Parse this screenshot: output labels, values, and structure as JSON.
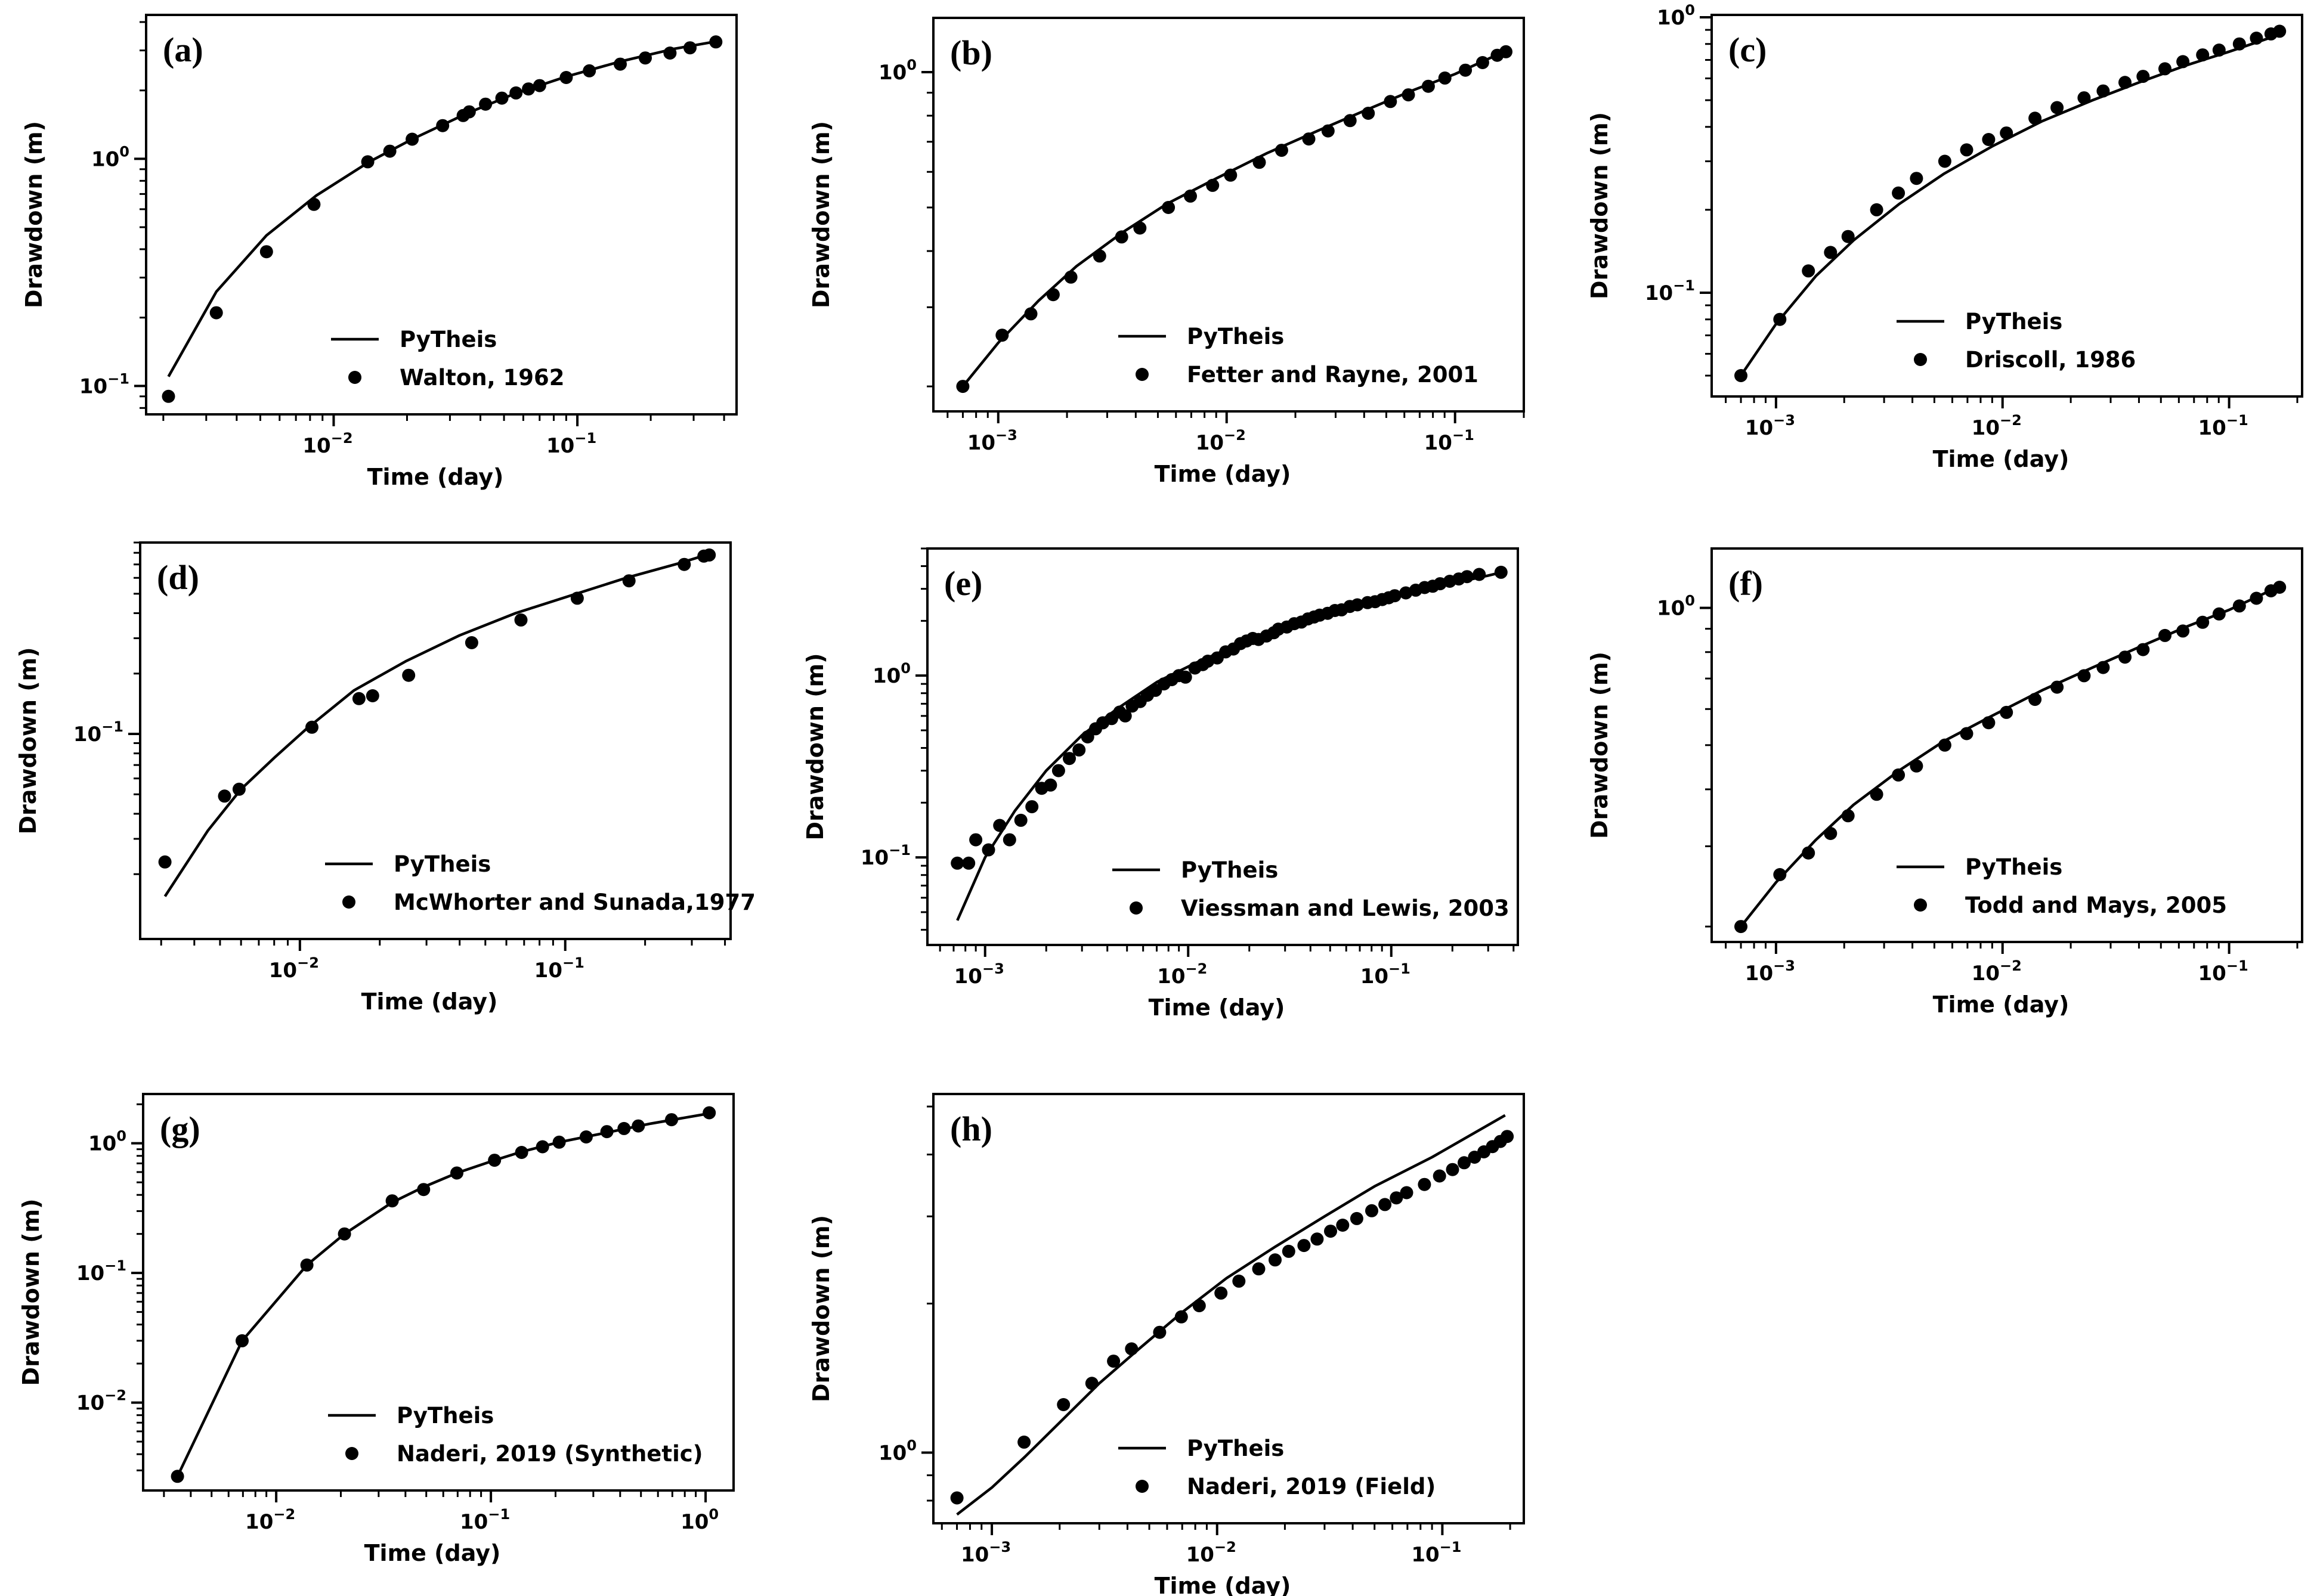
{
  "chart_data": [
    {
      "type": "line",
      "panel": "(a)",
      "xlabel": "Time (day)",
      "ylabel": "Drawdown (m)",
      "xscale": "log",
      "yscale": "log",
      "xlim": [
        0.0017,
        0.45
      ],
      "ylim": [
        0.075,
        4.3
      ],
      "xticks": [
        -2,
        -1
      ],
      "yticks": [
        -1,
        0
      ],
      "legend_position": "lower-right",
      "series": [
        {
          "name": "PyTheis",
          "kind": "line",
          "x": [
            0.0021,
            0.0033,
            0.0053,
            0.0085,
            0.014,
            0.021,
            0.035,
            0.055,
            0.09,
            0.15,
            0.25,
            0.38
          ],
          "y": [
            0.11,
            0.26,
            0.46,
            0.69,
            0.97,
            1.22,
            1.58,
            1.93,
            2.3,
            2.68,
            3.05,
            3.3
          ]
        },
        {
          "name": "Walton, 1962",
          "kind": "scatter",
          "x": [
            0.0021,
            0.0033,
            0.0053,
            0.0083,
            0.0138,
            0.017,
            0.021,
            0.028,
            0.034,
            0.036,
            0.042,
            0.049,
            0.056,
            0.063,
            0.07,
            0.09,
            0.112,
            0.15,
            0.19,
            0.24,
            0.29,
            0.37
          ],
          "y": [
            0.09,
            0.21,
            0.39,
            0.63,
            0.97,
            1.08,
            1.22,
            1.4,
            1.55,
            1.61,
            1.74,
            1.85,
            1.95,
            2.03,
            2.1,
            2.28,
            2.44,
            2.61,
            2.78,
            2.92,
            3.08,
            3.27
          ]
        }
      ],
      "legend": [
        "PyTheis",
        "Walton, 1962"
      ]
    },
    {
      "type": "line",
      "panel": "(b)",
      "xlabel": "Time (day)",
      "ylabel": "Drawdown (m)",
      "xscale": "log",
      "yscale": "log",
      "xlim": [
        0.00052,
        0.2
      ],
      "ylim": [
        0.176,
        1.32
      ],
      "xticks": [
        -3,
        -2,
        -1
      ],
      "yticks": [
        0
      ],
      "legend_position": "lower-right",
      "series": [
        {
          "name": "PyTheis",
          "kind": "line",
          "x": [
            0.0007,
            0.001,
            0.0015,
            0.0022,
            0.0035,
            0.0055,
            0.009,
            0.015,
            0.025,
            0.04,
            0.065,
            0.1,
            0.17
          ],
          "y": [
            0.2,
            0.25,
            0.31,
            0.37,
            0.44,
            0.51,
            0.58,
            0.66,
            0.74,
            0.82,
            0.91,
            0.99,
            1.12
          ]
        },
        {
          "name": "Fetter and Rayne, 2001",
          "kind": "scatter",
          "x": [
            0.0007,
            0.00104,
            0.00139,
            0.00174,
            0.00208,
            0.00278,
            0.00347,
            0.00417,
            0.00556,
            0.00694,
            0.00868,
            0.0104,
            0.0139,
            0.0174,
            0.0229,
            0.0278,
            0.0347,
            0.0417,
            0.0521,
            0.0625,
            0.0764,
            0.0903,
            0.111,
            0.132,
            0.153,
            0.167
          ],
          "y": [
            0.2,
            0.26,
            0.29,
            0.32,
            0.35,
            0.39,
            0.43,
            0.45,
            0.5,
            0.53,
            0.56,
            0.59,
            0.63,
            0.67,
            0.71,
            0.74,
            0.78,
            0.81,
            0.86,
            0.89,
            0.93,
            0.97,
            1.01,
            1.05,
            1.09,
            1.11
          ]
        }
      ],
      "legend": [
        "PyTheis",
        "Fetter and Rayne, 2001"
      ]
    },
    {
      "type": "line",
      "panel": "(c)",
      "xlabel": "Time (day)",
      "ylabel": "Drawdown (m)",
      "xscale": "log",
      "yscale": "log",
      "xlim": [
        0.00052,
        0.21
      ],
      "ylim": [
        0.042,
        1.02
      ],
      "xticks": [
        -3,
        -2,
        -1
      ],
      "yticks": [
        -1,
        0
      ],
      "legend_position": "lower-right",
      "series": [
        {
          "name": "PyTheis",
          "kind": "line",
          "x": [
            0.0007,
            0.001,
            0.0015,
            0.0022,
            0.0035,
            0.0055,
            0.009,
            0.015,
            0.025,
            0.04,
            0.065,
            0.1,
            0.17
          ],
          "y": [
            0.05,
            0.077,
            0.115,
            0.155,
            0.21,
            0.27,
            0.34,
            0.42,
            0.5,
            0.58,
            0.67,
            0.75,
            0.87
          ]
        },
        {
          "name": "Driscoll, 1986",
          "kind": "scatter",
          "x": [
            0.0007,
            0.00104,
            0.00139,
            0.00174,
            0.00208,
            0.00278,
            0.00347,
            0.00417,
            0.00556,
            0.00694,
            0.00868,
            0.0104,
            0.0139,
            0.0174,
            0.0229,
            0.0278,
            0.0347,
            0.0417,
            0.0521,
            0.0625,
            0.0764,
            0.0903,
            0.111,
            0.132,
            0.153,
            0.167
          ],
          "y": [
            0.05,
            0.08,
            0.12,
            0.14,
            0.16,
            0.2,
            0.23,
            0.26,
            0.3,
            0.33,
            0.36,
            0.38,
            0.43,
            0.47,
            0.51,
            0.54,
            0.58,
            0.61,
            0.65,
            0.69,
            0.73,
            0.76,
            0.8,
            0.84,
            0.87,
            0.89
          ]
        }
      ],
      "legend": [
        "PyTheis",
        "Driscoll, 1986"
      ]
    },
    {
      "type": "line",
      "panel": "(d)",
      "xlabel": "Time (day)",
      "ylabel": "Drawdown (m)",
      "xscale": "log",
      "yscale": "log",
      "xlim": [
        0.0025,
        0.42
      ],
      "ylim": [
        0.0095,
        0.9
      ],
      "xticks": [
        -2,
        -1
      ],
      "yticks": [
        -1
      ],
      "legend_position": "lower-right",
      "series": [
        {
          "name": "PyTheis",
          "kind": "line",
          "x": [
            0.0031,
            0.0045,
            0.006,
            0.008,
            0.0105,
            0.016,
            0.025,
            0.04,
            0.065,
            0.1,
            0.17,
            0.27,
            0.35
          ],
          "y": [
            0.0155,
            0.033,
            0.053,
            0.076,
            0.105,
            0.165,
            0.23,
            0.31,
            0.4,
            0.48,
            0.6,
            0.71,
            0.79
          ]
        },
        {
          "name": "McWhorter and Sunada,1977",
          "kind": "scatter",
          "x": [
            0.0031,
            0.0052,
            0.0059,
            0.0111,
            0.0167,
            0.0188,
            0.0257,
            0.0444,
            0.0681,
            0.111,
            0.174,
            0.281,
            0.333,
            0.349
          ],
          "y": [
            0.023,
            0.049,
            0.053,
            0.108,
            0.15,
            0.155,
            0.196,
            0.285,
            0.37,
            0.475,
            0.58,
            0.7,
            0.77,
            0.78
          ]
        }
      ],
      "legend": [
        "PyTheis",
        "McWhorter and Sunada,1977"
      ]
    },
    {
      "type": "line",
      "panel": "(e)",
      "xlabel": "Time (day)",
      "ylabel": "Drawdown (m)",
      "xscale": "log",
      "yscale": "log",
      "xlim": [
        0.00052,
        0.42
      ],
      "ylim": [
        0.033,
        5.0
      ],
      "xticks": [
        -3,
        -2,
        -1
      ],
      "yticks": [
        -1,
        0
      ],
      "legend_position": "lower-right",
      "series": [
        {
          "name": "PyTheis",
          "kind": "line",
          "x": [
            0.00073,
            0.001,
            0.0014,
            0.002,
            0.003,
            0.0045,
            0.007,
            0.011,
            0.018,
            0.03,
            0.05,
            0.09,
            0.16,
            0.3,
            0.35
          ],
          "y": [
            0.045,
            0.1,
            0.18,
            0.3,
            0.47,
            0.66,
            0.92,
            1.18,
            1.5,
            1.85,
            2.2,
            2.65,
            3.05,
            3.55,
            3.7
          ]
        },
        {
          "name": "Viessman and Lewis, 2003",
          "kind": "scatter",
          "x": [
            0.00073,
            0.00083,
            0.0009,
            0.00104,
            0.00118,
            0.00132,
            0.0015,
            0.0017,
            0.0019,
            0.0021,
            0.0023,
            0.0026,
            0.0029,
            0.0032,
            0.0035,
            0.0038,
            0.0042,
            0.0046,
            0.0049,
            0.0053,
            0.0058,
            0.0063,
            0.0069,
            0.0076,
            0.0083,
            0.009,
            0.0097,
            0.0108,
            0.0118,
            0.0125,
            0.0139,
            0.0153,
            0.0167,
            0.0181,
            0.0194,
            0.0208,
            0.0222,
            0.0243,
            0.0264,
            0.0278,
            0.0306,
            0.0333,
            0.0361,
            0.0389,
            0.0417,
            0.0444,
            0.0486,
            0.0528,
            0.0569,
            0.0625,
            0.0681,
            0.0764,
            0.0833,
            0.0903,
            0.0972,
            0.104,
            0.118,
            0.132,
            0.146,
            0.16,
            0.174,
            0.194,
            0.215,
            0.236,
            0.271,
            0.347
          ],
          "y": [
            0.093,
            0.093,
            0.125,
            0.11,
            0.15,
            0.125,
            0.16,
            0.19,
            0.24,
            0.25,
            0.3,
            0.35,
            0.39,
            0.46,
            0.51,
            0.55,
            0.58,
            0.63,
            0.6,
            0.68,
            0.72,
            0.78,
            0.83,
            0.9,
            0.95,
            1.0,
            0.98,
            1.1,
            1.15,
            1.2,
            1.25,
            1.35,
            1.4,
            1.5,
            1.55,
            1.6,
            1.58,
            1.65,
            1.72,
            1.8,
            1.85,
            1.93,
            1.97,
            2.05,
            2.1,
            2.15,
            2.2,
            2.28,
            2.3,
            2.4,
            2.45,
            2.52,
            2.55,
            2.62,
            2.68,
            2.75,
            2.85,
            2.95,
            3.05,
            3.1,
            3.2,
            3.3,
            3.4,
            3.5,
            3.6,
            3.7
          ]
        }
      ],
      "legend": [
        "PyTheis",
        "Viessman and Lewis, 2003"
      ]
    },
    {
      "type": "line",
      "panel": "(f)",
      "xlabel": "Time (day)",
      "ylabel": "Drawdown (m)",
      "xscale": "log",
      "yscale": "log",
      "xlim": [
        0.00052,
        0.21
      ],
      "ylim": [
        0.185,
        1.35
      ],
      "xticks": [
        -3,
        -2,
        -1
      ],
      "yticks": [
        0
      ],
      "legend_position": "lower-right",
      "series": [
        {
          "name": "PyTheis",
          "kind": "line",
          "x": [
            0.0007,
            0.001,
            0.0015,
            0.0022,
            0.0035,
            0.0055,
            0.009,
            0.015,
            0.025,
            0.04,
            0.065,
            0.1,
            0.17
          ],
          "y": [
            0.2,
            0.25,
            0.31,
            0.37,
            0.44,
            0.51,
            0.58,
            0.66,
            0.74,
            0.82,
            0.91,
            0.99,
            1.12
          ]
        },
        {
          "name": "Todd and Mays, 2005",
          "kind": "scatter",
          "x": [
            0.0007,
            0.00104,
            0.00139,
            0.00174,
            0.00208,
            0.00278,
            0.00347,
            0.00417,
            0.00556,
            0.00694,
            0.00868,
            0.0104,
            0.0139,
            0.0174,
            0.0229,
            0.0278,
            0.0347,
            0.0417,
            0.0521,
            0.0625,
            0.0764,
            0.0903,
            0.111,
            0.132,
            0.153,
            0.167
          ],
          "y": [
            0.2,
            0.26,
            0.29,
            0.32,
            0.35,
            0.39,
            0.43,
            0.45,
            0.5,
            0.53,
            0.56,
            0.59,
            0.63,
            0.67,
            0.71,
            0.74,
            0.78,
            0.81,
            0.87,
            0.89,
            0.93,
            0.97,
            1.01,
            1.05,
            1.09,
            1.11
          ]
        }
      ],
      "legend": [
        "PyTheis",
        "Todd and Mays, 2005"
      ]
    },
    {
      "type": "line",
      "panel": "(g)",
      "xlabel": "Time (day)",
      "ylabel": "Drawdown (m)",
      "xscale": "log",
      "yscale": "log",
      "xlim": [
        0.0024,
        1.35
      ],
      "ylim": [
        0.0021,
        2.4
      ],
      "xticks": [
        -2,
        -1,
        0
      ],
      "yticks": [
        -2,
        -1,
        0
      ],
      "legend_position": "lower-right",
      "series": [
        {
          "name": "PyTheis",
          "kind": "line",
          "x": [
            0.00347,
            0.00694,
            0.0139,
            0.0208,
            0.0347,
            0.0486,
            0.0694,
            0.104,
            0.139,
            0.208,
            0.347,
            0.556,
            1.04
          ],
          "y": [
            0.0027,
            0.03,
            0.115,
            0.2,
            0.35,
            0.46,
            0.59,
            0.74,
            0.86,
            1.02,
            1.21,
            1.42,
            1.7
          ]
        },
        {
          "name": "Naderi, 2019 (Synthetic)",
          "kind": "scatter",
          "x": [
            0.00347,
            0.00694,
            0.0139,
            0.0208,
            0.0347,
            0.0486,
            0.0694,
            0.104,
            0.139,
            0.174,
            0.208,
            0.278,
            0.347,
            0.417,
            0.486,
            0.694,
            1.04
          ],
          "y": [
            0.0027,
            0.03,
            0.115,
            0.2,
            0.36,
            0.44,
            0.59,
            0.74,
            0.85,
            0.94,
            1.02,
            1.12,
            1.23,
            1.3,
            1.36,
            1.52,
            1.72
          ]
        }
      ],
      "legend": [
        "PyTheis",
        "Naderi, 2019 (Synthetic)"
      ]
    },
    {
      "type": "line",
      "panel": "(h)",
      "xlabel": "Time (day)",
      "ylabel": "Drawdown (m)",
      "xscale": "log",
      "yscale": "log",
      "xlim": [
        0.00055,
        0.23
      ],
      "ylim": [
        0.72,
        5.3
      ],
      "xticks": [
        -3,
        -2,
        -1
      ],
      "yticks": [
        0
      ],
      "legend_position": "lower-right",
      "series": [
        {
          "name": "PyTheis",
          "kind": "line",
          "x": [
            0.0007,
            0.001,
            0.0014,
            0.002,
            0.003,
            0.0045,
            0.007,
            0.011,
            0.018,
            0.03,
            0.05,
            0.09,
            0.19
          ],
          "y": [
            0.75,
            0.85,
            0.98,
            1.15,
            1.38,
            1.62,
            1.92,
            2.25,
            2.6,
            3.0,
            3.45,
            3.95,
            4.8
          ]
        },
        {
          "name": "Naderi, 2019 (Field)",
          "kind": "scatter",
          "x": [
            0.0007,
            0.00139,
            0.00208,
            0.00278,
            0.00347,
            0.00417,
            0.00556,
            0.00694,
            0.00833,
            0.0104,
            0.0125,
            0.0153,
            0.0181,
            0.0208,
            0.0243,
            0.0278,
            0.0319,
            0.0361,
            0.0417,
            0.0486,
            0.0556,
            0.0625,
            0.0694,
            0.0833,
            0.0972,
            0.111,
            0.125,
            0.139,
            0.153,
            0.167,
            0.181,
            0.194
          ],
          "y": [
            0.81,
            1.05,
            1.25,
            1.38,
            1.53,
            1.62,
            1.75,
            1.88,
            1.98,
            2.1,
            2.22,
            2.35,
            2.45,
            2.55,
            2.62,
            2.7,
            2.8,
            2.88,
            2.97,
            3.08,
            3.17,
            3.27,
            3.35,
            3.48,
            3.62,
            3.73,
            3.85,
            3.95,
            4.05,
            4.15,
            4.25,
            4.35
          ]
        }
      ],
      "legend": [
        "PyTheis",
        "Naderi, 2019 (Field)"
      ]
    }
  ]
}
